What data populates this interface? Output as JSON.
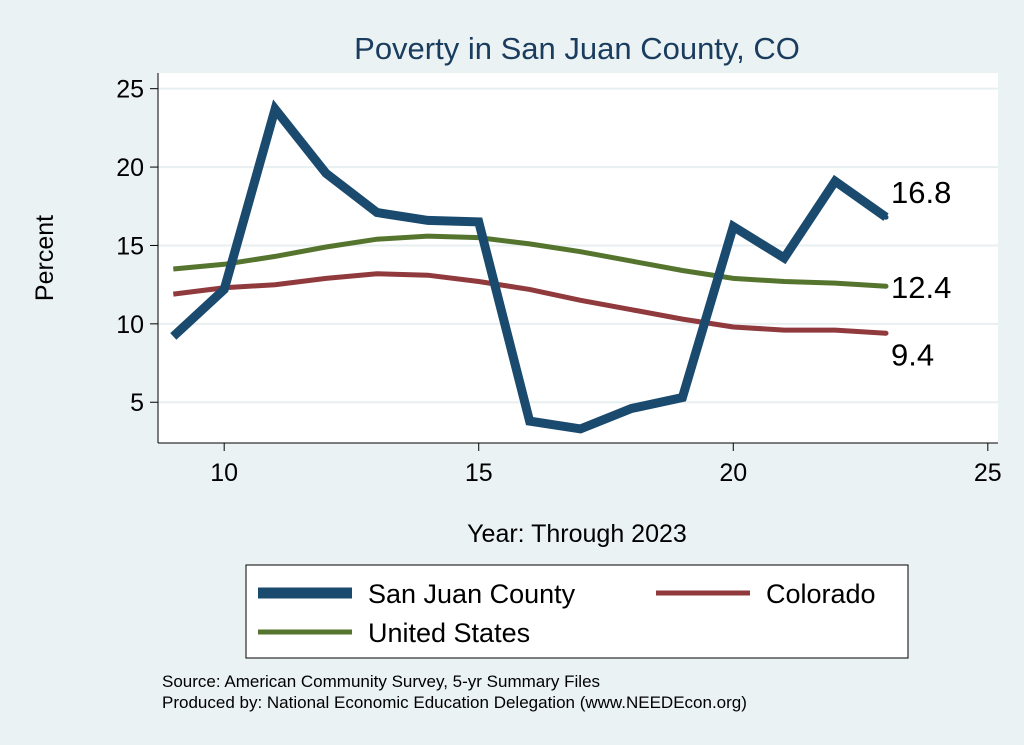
{
  "chart_data": {
    "type": "line",
    "title": "Poverty in San Juan County, CO",
    "xlabel": "Year: Through 2023",
    "ylabel": "Percent",
    "xlim": [
      8.7,
      25.2
    ],
    "ylim": [
      2.4,
      26.0
    ],
    "x_ticks": [
      10,
      15,
      20,
      25
    ],
    "y_ticks": [
      5,
      10,
      15,
      20,
      25
    ],
    "grid": true,
    "legend_position": "bottom",
    "x": [
      9,
      10,
      11,
      12,
      13,
      14,
      15,
      16,
      17,
      18,
      19,
      20,
      21,
      22,
      23
    ],
    "series": [
      {
        "name": "San Juan County",
        "color": "#1a4a6e",
        "values": [
          9.2,
          12.2,
          23.7,
          19.6,
          17.1,
          16.6,
          16.5,
          3.8,
          3.3,
          4.6,
          5.3,
          16.2,
          14.2,
          19.1,
          16.8
        ],
        "end_label": "16.8"
      },
      {
        "name": "Colorado",
        "color": "#903a3e",
        "values": [
          11.9,
          12.3,
          12.5,
          12.9,
          13.2,
          13.1,
          12.7,
          12.2,
          11.5,
          10.9,
          10.3,
          9.8,
          9.6,
          9.6,
          9.4
        ],
        "end_label": "9.4"
      },
      {
        "name": "United States",
        "color": "#55752f",
        "values": [
          13.5,
          13.8,
          14.3,
          14.9,
          15.4,
          15.6,
          15.5,
          15.1,
          14.6,
          14.0,
          13.4,
          12.9,
          12.7,
          12.6,
          12.4
        ],
        "end_label": "12.4"
      }
    ],
    "source_lines": [
      "Source: American Community Survey, 5-yr Summary Files",
      "Produced by: National Economic Education Delegation (www.NEEDEcon.org)"
    ]
  }
}
